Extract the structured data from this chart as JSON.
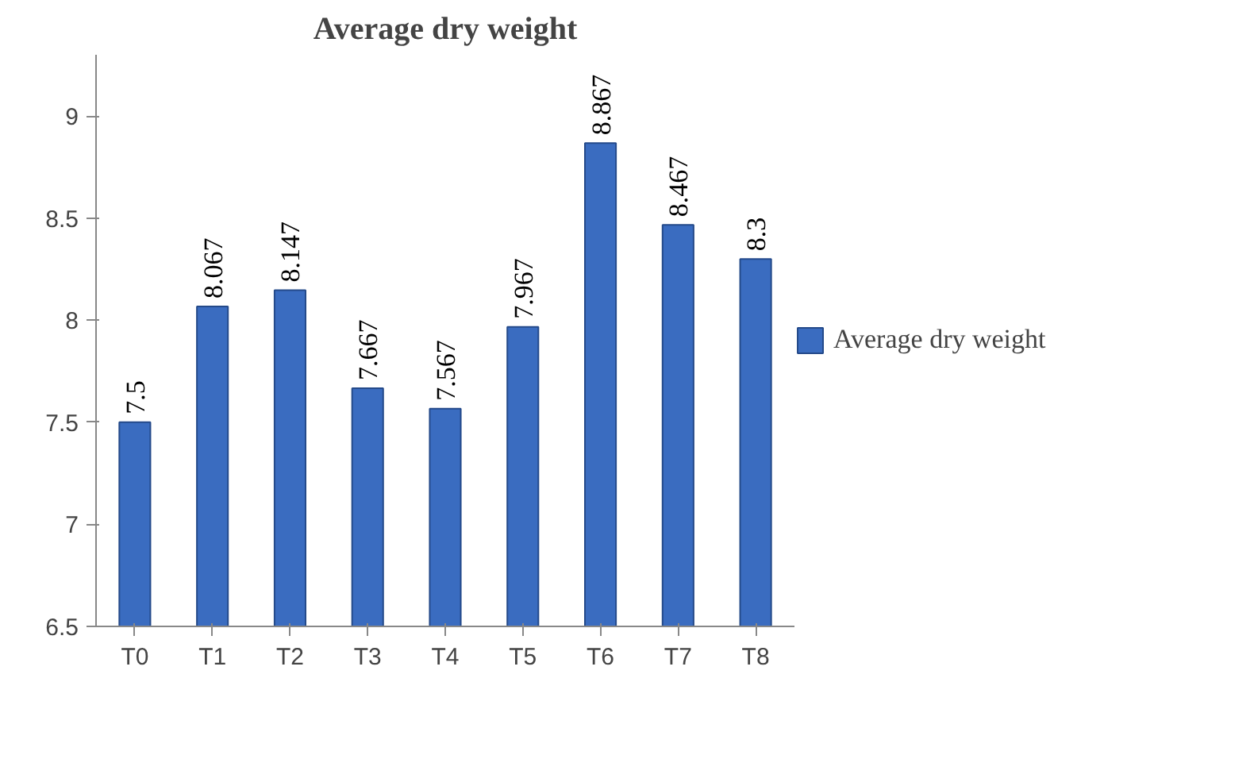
{
  "chart_data": {
    "type": "bar",
    "title": "Average dry weight",
    "categories": [
      "T0",
      "T1",
      "T2",
      "T3",
      "T4",
      "T5",
      "T6",
      "T7",
      "T8"
    ],
    "series": [
      {
        "name": "Average dry weight",
        "color": "#3a6cc0",
        "values": [
          7.5,
          8.067,
          8.147,
          7.667,
          7.567,
          7.967,
          8.867,
          8.467,
          8.3
        ]
      }
    ],
    "ylim": [
      6.5,
      9.3
    ],
    "yticks": [
      6.5,
      7,
      7.5,
      8,
      8.5,
      9
    ],
    "grid": false,
    "legend": "right",
    "data_labels": true
  }
}
